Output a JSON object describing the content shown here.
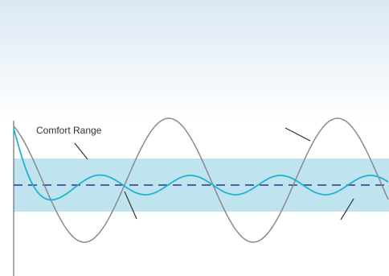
{
  "labels": {
    "comfort_range": "Comfort Range"
  }
}
